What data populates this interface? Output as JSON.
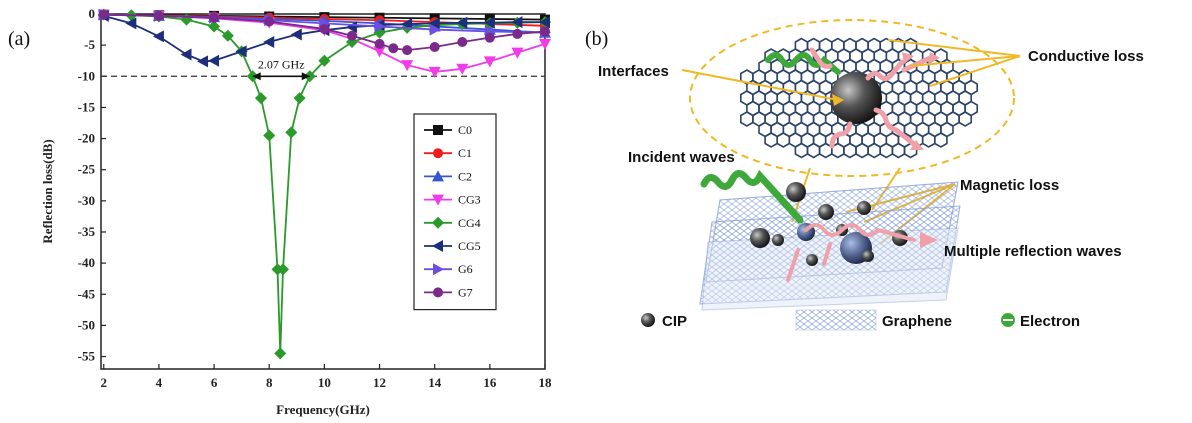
{
  "panel_a": {
    "label": "(a)"
  },
  "panel_b": {
    "label": "(b)"
  },
  "chart_data": {
    "type": "line",
    "xlabel": "Frequency(GHz)",
    "ylabel": "Reflection loss(dB)",
    "xlim": [
      1.9,
      18
    ],
    "ylim": [
      -57,
      0
    ],
    "xticks": [
      2,
      4,
      6,
      8,
      10,
      12,
      14,
      16,
      18
    ],
    "yticks": [
      0,
      -5,
      -10,
      -15,
      -20,
      -25,
      -30,
      -35,
      -40,
      -45,
      -50,
      -55
    ],
    "reference_line": -10,
    "annotation": "2.07 GHz",
    "bandwidth_range": [
      7.4,
      9.47
    ],
    "legend_position": "right",
    "series": [
      {
        "name": "C0",
        "color": "#111111",
        "marker": "square",
        "x": [
          2,
          4,
          6,
          8,
          10,
          12,
          14,
          16,
          18
        ],
        "y": [
          -0.1,
          -0.2,
          -0.3,
          -0.4,
          -0.5,
          -0.6,
          -0.7,
          -0.8,
          -0.9
        ]
      },
      {
        "name": "C1",
        "color": "#ee1c1c",
        "marker": "circle",
        "x": [
          2,
          4,
          6,
          8,
          10,
          12,
          14,
          16,
          18
        ],
        "y": [
          -0.1,
          -0.25,
          -0.4,
          -0.6,
          -0.8,
          -1.0,
          -1.3,
          -1.6,
          -1.9
        ]
      },
      {
        "name": "C2",
        "color": "#3a54d6",
        "marker": "triangle-up",
        "x": [
          2,
          4,
          6,
          8,
          10,
          12,
          14,
          16,
          18
        ],
        "y": [
          -0.1,
          -0.3,
          -0.5,
          -0.8,
          -1.1,
          -1.5,
          -2.0,
          -2.5,
          -3.0
        ]
      },
      {
        "name": "CG3",
        "color": "#f03ce8",
        "marker": "triangle-down",
        "x": [
          2,
          4,
          6,
          8,
          10,
          11,
          12,
          13,
          14,
          15,
          16,
          17,
          18
        ],
        "y": [
          -0.1,
          -0.3,
          -0.7,
          -1.4,
          -2.6,
          -4.0,
          -6.0,
          -8.2,
          -9.3,
          -8.8,
          -7.6,
          -6.2,
          -4.8
        ]
      },
      {
        "name": "CG4",
        "color": "#2a9a2a",
        "marker": "diamond",
        "x": [
          2,
          3,
          4,
          5,
          6,
          6.5,
          7,
          7.4,
          7.7,
          8.0,
          8.3,
          8.4,
          8.5,
          8.8,
          9.1,
          9.47,
          10,
          11,
          12,
          13,
          14,
          15,
          16,
          17,
          18
        ],
        "y": [
          -0.1,
          -0.2,
          -0.4,
          -0.9,
          -2.0,
          -3.5,
          -6.0,
          -10.0,
          -13.5,
          -19.5,
          -41.0,
          -54.5,
          -41.0,
          -19.0,
          -13.5,
          -10.0,
          -7.5,
          -4.5,
          -3.0,
          -2.2,
          -1.8,
          -1.6,
          -1.5,
          -1.4,
          -1.3
        ]
      },
      {
        "name": "CG5",
        "color": "#1d2f7a",
        "marker": "triangle-left",
        "x": [
          2,
          3,
          4,
          5,
          5.6,
          6,
          7,
          8,
          9,
          10,
          11,
          12,
          13,
          14,
          15,
          16,
          17,
          18
        ],
        "y": [
          -0.3,
          -1.5,
          -3.6,
          -6.5,
          -7.6,
          -7.5,
          -6.0,
          -4.5,
          -3.3,
          -2.6,
          -2.1,
          -1.8,
          -1.6,
          -1.5,
          -1.4,
          -1.4,
          -1.3,
          -1.3
        ]
      },
      {
        "name": "G6",
        "color": "#6a4fe0",
        "marker": "triangle-right",
        "x": [
          2,
          4,
          6,
          8,
          10,
          12,
          14,
          16,
          18
        ],
        "y": [
          -0.1,
          -0.3,
          -0.6,
          -1.0,
          -1.5,
          -2.0,
          -2.5,
          -2.8,
          -3.0
        ]
      },
      {
        "name": "G7",
        "color": "#7a2a8a",
        "marker": "circle",
        "x": [
          2,
          4,
          6,
          8,
          10,
          11,
          12,
          12.5,
          13,
          14,
          15,
          16,
          17,
          18
        ],
        "y": [
          -0.1,
          -0.3,
          -0.6,
          -1.2,
          -2.4,
          -3.5,
          -4.8,
          -5.5,
          -5.8,
          -5.3,
          -4.5,
          -3.8,
          -3.2,
          -2.8
        ]
      }
    ]
  },
  "diagram": {
    "labels": {
      "interfaces": "Interfaces",
      "conductive_loss": "Conductive loss",
      "incident_waves": "Incident waves",
      "magnetic_loss": "Magnetic loss",
      "multiple_reflection": "Multiple reflection waves"
    },
    "legend": {
      "cip": "CIP",
      "graphene": "Graphene",
      "electron": "Electron"
    },
    "colors": {
      "pointer": "#f0b825",
      "wave_green": "#3ea83a",
      "wave_pink": "#f0a0a8",
      "graphene_blue": "#8aa3d8",
      "sphere": "#444444"
    }
  }
}
